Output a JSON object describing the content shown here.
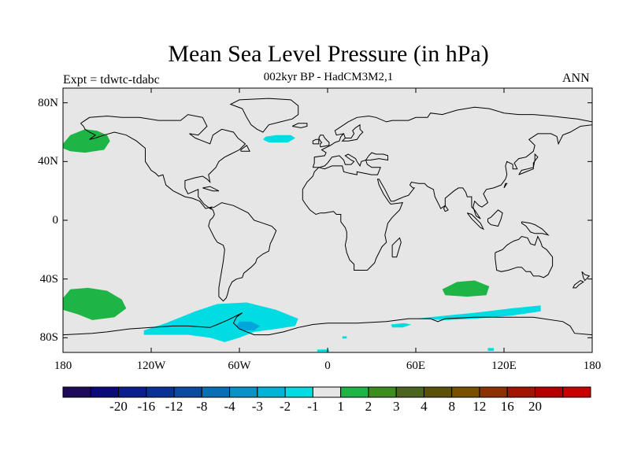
{
  "title": "Mean Sea Level Pressure (in hPa)",
  "subtitle": "002kyr BP - HadCM3M2,1",
  "experiment": "Expt = tdwtc-tdabc",
  "season": "ANN",
  "map": {
    "lon_range": [
      -180,
      180
    ],
    "lat_range": [
      -90,
      90
    ],
    "background_color": "#e6e6e6",
    "y_ticks": [
      {
        "lat": 80,
        "label": "80N"
      },
      {
        "lat": 40,
        "label": "40N"
      },
      {
        "lat": 0,
        "label": "0"
      },
      {
        "lat": -40,
        "label": "40S"
      },
      {
        "lat": -80,
        "label": "80S"
      }
    ],
    "x_ticks": [
      {
        "lon": -180,
        "label": "180"
      },
      {
        "lon": -120,
        "label": "120W"
      },
      {
        "lon": -60,
        "label": "60W"
      },
      {
        "lon": 0,
        "label": "0"
      },
      {
        "lon": 60,
        "label": "60E"
      },
      {
        "lon": 120,
        "label": "120E"
      },
      {
        "lon": 180,
        "label": "180"
      }
    ],
    "anomaly_regions": [
      {
        "name": "north-pacific-positive-anomaly",
        "color": "#1fb446",
        "points": [
          [
            -180,
            52
          ],
          [
            -175,
            58
          ],
          [
            -165,
            62
          ],
          [
            -157,
            61
          ],
          [
            -150,
            58
          ],
          [
            -148,
            54
          ],
          [
            -152,
            48
          ],
          [
            -165,
            46
          ],
          [
            -175,
            47
          ],
          [
            -180,
            49
          ]
        ]
      },
      {
        "name": "north-atlantic-negative-anomaly",
        "color": "#00dce1",
        "points": [
          [
            -42,
            57
          ],
          [
            -35,
            58
          ],
          [
            -25,
            58
          ],
          [
            -22,
            56
          ],
          [
            -27,
            53
          ],
          [
            -40,
            53
          ],
          [
            -44,
            55
          ]
        ]
      },
      {
        "name": "south-pacific-positive-anomaly",
        "color": "#1fb446",
        "points": [
          [
            -180,
            -53
          ],
          [
            -175,
            -47
          ],
          [
            -163,
            -46
          ],
          [
            -150,
            -48
          ],
          [
            -140,
            -54
          ],
          [
            -137,
            -60
          ],
          [
            -145,
            -66
          ],
          [
            -160,
            -68
          ],
          [
            -170,
            -64
          ],
          [
            -180,
            -61
          ]
        ]
      },
      {
        "name": "south-indian-positive-anomaly",
        "color": "#1fb446",
        "points": [
          [
            78,
            -47
          ],
          [
            88,
            -42
          ],
          [
            100,
            -41
          ],
          [
            110,
            -45
          ],
          [
            108,
            -51
          ],
          [
            95,
            -52
          ],
          [
            80,
            -51
          ]
        ]
      },
      {
        "name": "southern-ocean-negative-anomaly",
        "color": "#00dce1",
        "points": [
          [
            -125,
            -75
          ],
          [
            -110,
            -70
          ],
          [
            -90,
            -62
          ],
          [
            -75,
            -57
          ],
          [
            -55,
            -56
          ],
          [
            -35,
            -61
          ],
          [
            -20,
            -67
          ],
          [
            -22,
            -72
          ],
          [
            -35,
            -74
          ],
          [
            -50,
            -76
          ],
          [
            -60,
            -80
          ],
          [
            -70,
            -83
          ],
          [
            -80,
            -80
          ],
          [
            -95,
            -78
          ],
          [
            -110,
            -78
          ],
          [
            -125,
            -78
          ]
        ]
      },
      {
        "name": "weddell-negative-anomaly-core",
        "color": "#00a5dc",
        "points": [
          [
            -60,
            -69
          ],
          [
            -52,
            -69
          ],
          [
            -46,
            -72
          ],
          [
            -50,
            -75
          ],
          [
            -58,
            -75
          ],
          [
            -62,
            -72
          ]
        ]
      },
      {
        "name": "indian-ocean-sector-negative-anomaly",
        "color": "#00dce1",
        "points": [
          [
            60,
            -67
          ],
          [
            80,
            -65
          ],
          [
            100,
            -63
          ],
          [
            125,
            -60
          ],
          [
            145,
            -58
          ],
          [
            145,
            -62
          ],
          [
            125,
            -65
          ],
          [
            100,
            -67
          ],
          [
            80,
            -68
          ]
        ]
      },
      {
        "name": "small-negative-patch-1",
        "color": "#00dce1",
        "points": [
          [
            43,
            -71
          ],
          [
            52,
            -70
          ],
          [
            57,
            -71
          ],
          [
            51,
            -73
          ],
          [
            44,
            -73
          ]
        ]
      },
      {
        "name": "small-negative-patch-2",
        "color": "#00dce1",
        "points": [
          [
            -7,
            -88
          ],
          [
            1,
            -88
          ],
          [
            1,
            -89.5
          ],
          [
            -7,
            -89.5
          ]
        ]
      },
      {
        "name": "small-negative-patch-3",
        "color": "#00dce1",
        "points": [
          [
            109,
            -87
          ],
          [
            113,
            -87
          ],
          [
            113,
            -89
          ],
          [
            109,
            -89
          ]
        ]
      },
      {
        "name": "small-negative-patch-4",
        "color": "#00dce1",
        "points": [
          [
            10,
            -79
          ],
          [
            13,
            -79
          ],
          [
            13,
            -80.5
          ],
          [
            10,
            -80.5
          ]
        ]
      }
    ]
  },
  "colorbar": {
    "colors": [
      "#1e0a5a",
      "#0a0a78",
      "#0a1e8c",
      "#0a3296",
      "#0a4ba0",
      "#0a6eb4",
      "#0a91c8",
      "#00b4d7",
      "#00dce1",
      "#e6e6e6",
      "#1fb446",
      "#3c8c1e",
      "#4b641e",
      "#5a500a",
      "#785000",
      "#8c3200",
      "#a01400",
      "#b40000",
      "#c80000"
    ],
    "labels": [
      "-20",
      "-16",
      "-12",
      "-8",
      "-4",
      "-3",
      "-2",
      "-1",
      "1",
      "2",
      "3",
      "4",
      "8",
      "12",
      "16",
      "20"
    ]
  }
}
